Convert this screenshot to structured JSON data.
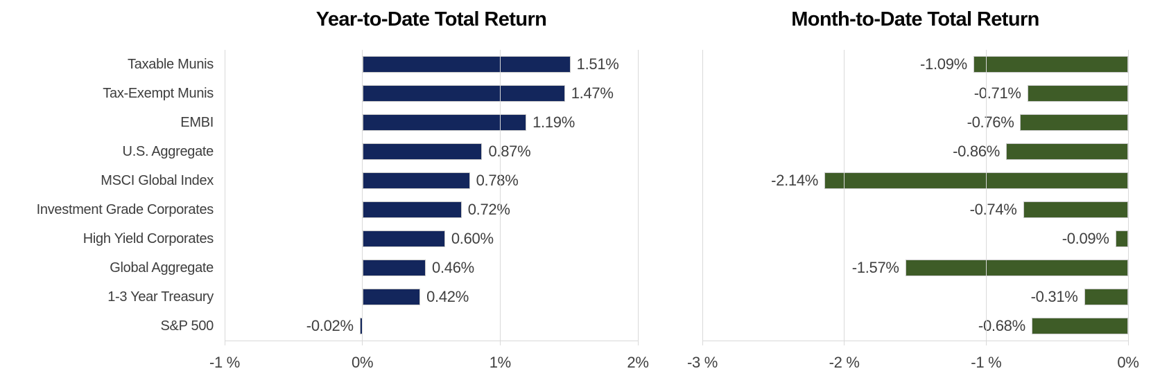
{
  "figure": {
    "background": "#ffffff"
  },
  "colors": {
    "grid": "#d9d9d9",
    "axis_text": "#3f3f3f",
    "category_text": "#3d3d3d",
    "title_text": "#060606",
    "bar_outline": "#c6c6c6",
    "ytd_bar": "#13265c",
    "mtd_bar": "#3e5c27"
  },
  "chart_data": [
    {
      "type": "bar",
      "orientation": "horizontal",
      "title": "Year-to-Date Total Return",
      "bar_color": "#13265c",
      "xlim": [
        -1,
        2
      ],
      "grid": true,
      "legend": "none",
      "categories": [
        "Taxable Munis",
        "Tax-Exempt Munis",
        "EMBI",
        "U.S. Aggregate",
        "MSCI Global Index",
        "Investment Grade Corporates",
        "High Yield Corporates",
        "Global Aggregate",
        "1-3 Year Treasury",
        "S&P 500"
      ],
      "values": [
        1.51,
        1.47,
        1.19,
        0.87,
        0.78,
        0.72,
        0.6,
        0.46,
        0.42,
        -0.02
      ],
      "value_labels": [
        "1.51%",
        "1.47%",
        "1.19%",
        "0.87%",
        "0.78%",
        "0.72%",
        "0.60%",
        "0.46%",
        "0.42%",
        "-0.02%"
      ],
      "x_ticks": [
        {
          "value": -1,
          "label": "-1 %"
        },
        {
          "value": 0,
          "label": "0%"
        },
        {
          "value": 1,
          "label": "1%"
        },
        {
          "value": 2,
          "label": "2%"
        }
      ],
      "show_category_labels": true
    },
    {
      "type": "bar",
      "orientation": "horizontal",
      "title": "Month-to-Date Total Return",
      "bar_color": "#3e5c27",
      "xlim": [
        -3,
        0
      ],
      "grid": true,
      "legend": "none",
      "categories": [
        "Taxable Munis",
        "Tax-Exempt Munis",
        "EMBI",
        "U.S. Aggregate",
        "MSCI Global Index",
        "Investment Grade Corporates",
        "High Yield Corporates",
        "Global Aggregate",
        "1-3 Year Treasury",
        "S&P 500"
      ],
      "values": [
        -1.09,
        -0.71,
        -0.76,
        -0.86,
        -2.14,
        -0.74,
        -0.09,
        -1.57,
        -0.31,
        -0.68
      ],
      "value_labels": [
        "-1.09%",
        "-0.71%",
        "-0.76%",
        "-0.86%",
        "-2.14%",
        "-0.74%",
        "-0.09%",
        "-1.57%",
        "-0.31%",
        "-0.68%"
      ],
      "x_ticks": [
        {
          "value": -3,
          "label": "-3 %"
        },
        {
          "value": -2,
          "label": "-2 %"
        },
        {
          "value": -1,
          "label": "-1 %"
        },
        {
          "value": 0,
          "label": "0%"
        }
      ],
      "show_category_labels": false
    }
  ]
}
